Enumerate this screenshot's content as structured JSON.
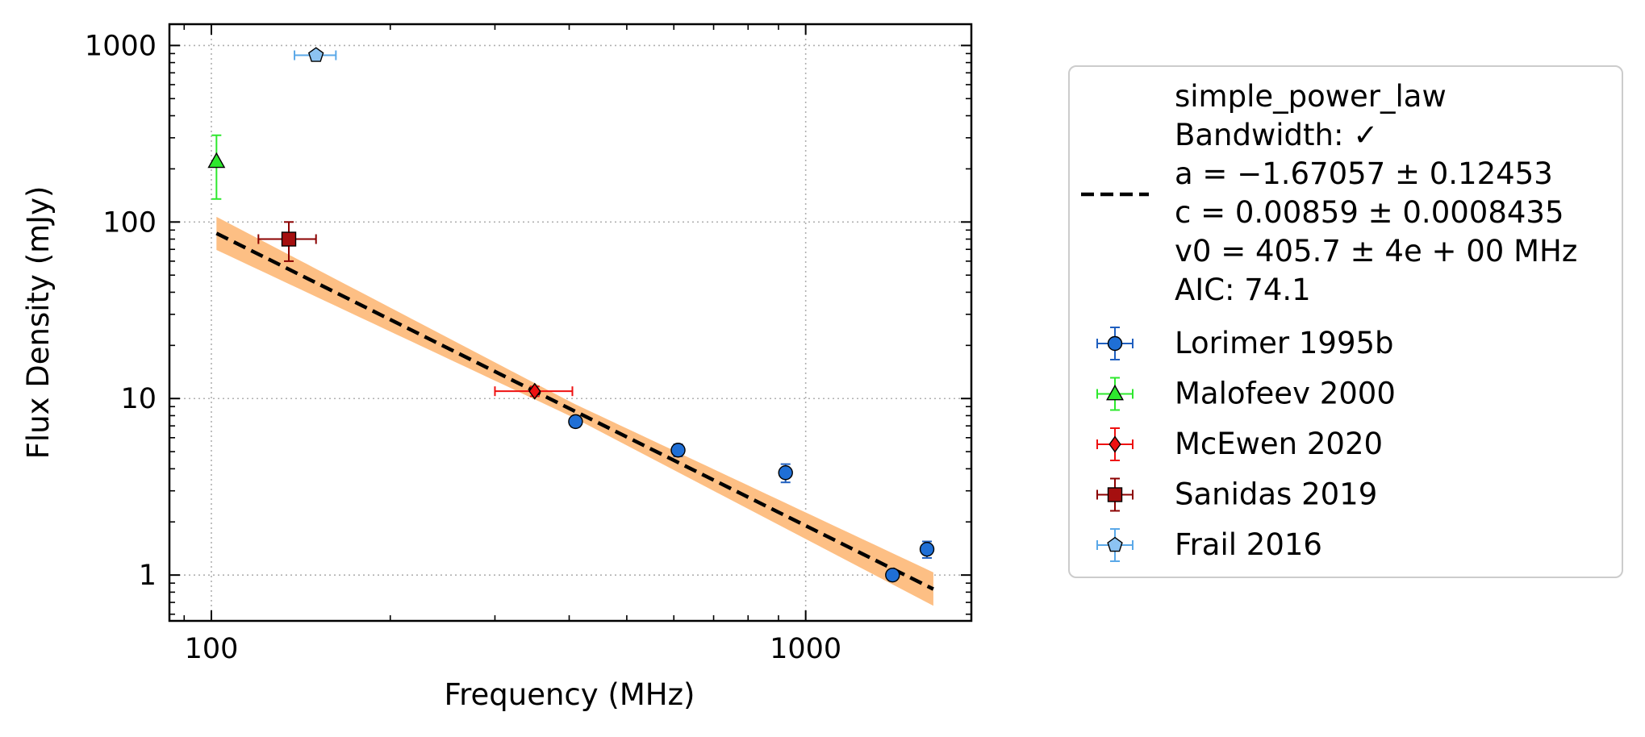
{
  "chart_data": {
    "type": "scatter",
    "xlabel": "Frequency (MHz)",
    "ylabel": "Flux Density (mJy)",
    "xscale": "log",
    "yscale": "log",
    "xlim": [
      85,
      1900
    ],
    "ylim": [
      0.55,
      1320
    ],
    "x_ticks": [
      {
        "value": 100,
        "label": "100"
      },
      {
        "value": 1000,
        "label": "1000"
      }
    ],
    "y_ticks": [
      {
        "value": 1,
        "label": "1"
      },
      {
        "value": 10,
        "label": "10"
      },
      {
        "value": 100,
        "label": "100"
      },
      {
        "value": 1000,
        "label": "1000"
      }
    ],
    "grid": true,
    "legend_position": "outside-right",
    "fit": {
      "model": "simple_power_law",
      "legend_lines": [
        "simple_power_law",
        "Bandwidth: ✓",
        "a = −1.67057 ± 0.12453",
        "c = 0.00859 ± 0.0008435",
        "v0 = 405.7 ± 4e + 00 MHz",
        "AIC: 74.1"
      ],
      "a": -1.67057,
      "c": 0.00859,
      "v0": 405.7,
      "x_range": [
        102,
        1640
      ],
      "band_color": "#fdbf84",
      "line_color": "#000000"
    },
    "series": [
      {
        "name": "Lorimer 1995b",
        "marker": "circle",
        "color": "#1f6fd6",
        "err_color": "#1f5fbf",
        "points": [
          {
            "x": 410,
            "y": 7.4,
            "yerr": 0.5
          },
          {
            "x": 610,
            "y": 5.1,
            "yerr": 0.4
          },
          {
            "x": 925,
            "y": 3.8,
            "yerr": 0.45
          },
          {
            "x": 1400,
            "y": 1.0,
            "yerr": 0.06
          },
          {
            "x": 1600,
            "y": 1.4,
            "yerr": 0.15
          }
        ]
      },
      {
        "name": "Malofeev 2000",
        "marker": "triangle",
        "color": "#2ee82e",
        "err_color": "#2ee82e",
        "points": [
          {
            "x": 102,
            "y": 220,
            "yerr_low": 85,
            "yerr_high": 90
          }
        ]
      },
      {
        "name": "McEwen 2020",
        "marker": "diamond",
        "color": "#ee1111",
        "err_color": "#ee1111",
        "points": [
          {
            "x": 350,
            "y": 11,
            "xerr_low": 50,
            "xerr_high": 55,
            "yerr": 0.7
          }
        ]
      },
      {
        "name": "Sanidas 2019",
        "marker": "square",
        "color": "#a50f0f",
        "err_color": "#8b0000",
        "points": [
          {
            "x": 135,
            "y": 80,
            "xerr": 15,
            "yerr": 20
          }
        ]
      },
      {
        "name": "Frail 2016",
        "marker": "pentagon",
        "color": "#8cc3f2",
        "err_color": "#5aa8e8",
        "points": [
          {
            "x": 150,
            "y": 880,
            "xerr": 12,
            "yerr": 40
          }
        ]
      }
    ]
  }
}
